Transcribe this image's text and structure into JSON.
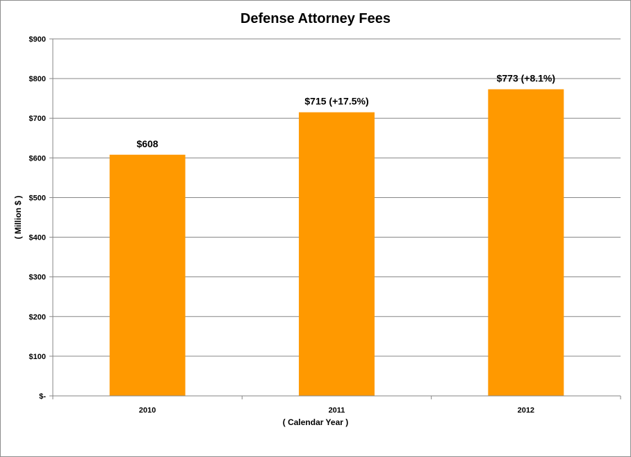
{
  "chart_data": {
    "type": "bar",
    "title": "Defense Attorney Fees",
    "xlabel": "( Calendar Year )",
    "ylabel": "( Million $ )",
    "categories": [
      "2010",
      "2011",
      "2012"
    ],
    "values": [
      608,
      715,
      773
    ],
    "data_labels": [
      "$608",
      "$715 (+17.5%)",
      "$773 (+8.1%)"
    ],
    "ylim": [
      0,
      900
    ],
    "y_ticks": [
      0,
      100,
      200,
      300,
      400,
      500,
      600,
      700,
      800,
      900
    ],
    "y_tick_labels": [
      "$-",
      "$100",
      "$200",
      "$300",
      "$400",
      "$500",
      "$600",
      "$700",
      "$800",
      "$900"
    ],
    "grid": true,
    "bar_color": "#FF9900",
    "grid_color": "#868686"
  }
}
